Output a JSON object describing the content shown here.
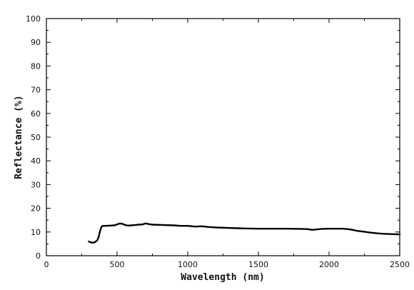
{
  "chart_data": {
    "type": "line",
    "title": "",
    "xlabel": "Wavelength (nm)",
    "ylabel": "Reflectance (%)",
    "xlim": [
      0,
      2500
    ],
    "ylim": [
      0,
      100
    ],
    "xticks": [
      0,
      500,
      1000,
      1500,
      2000,
      2500
    ],
    "yticks": [
      0,
      10,
      20,
      30,
      40,
      50,
      60,
      70,
      80,
      90,
      100
    ],
    "grid": false,
    "legend": "none",
    "series": [
      {
        "color": "#000000",
        "x": [
          300,
          320,
          340,
          360,
          370,
          380,
          390,
          400,
          420,
          450,
          480,
          500,
          520,
          540,
          560,
          580,
          600,
          620,
          650,
          680,
          700,
          720,
          750,
          800,
          850,
          900,
          950,
          1000,
          1050,
          1100,
          1150,
          1200,
          1250,
          1300,
          1350,
          1400,
          1500,
          1600,
          1700,
          1800,
          1850,
          1880,
          1900,
          1950,
          2000,
          2050,
          2100,
          2150,
          2200,
          2250,
          2300,
          2350,
          2400,
          2450,
          2500
        ],
        "y": [
          6.0,
          5.5,
          5.6,
          6.5,
          8.0,
          10.5,
          12.2,
          12.6,
          12.6,
          12.7,
          12.8,
          13.2,
          13.6,
          13.4,
          12.9,
          12.7,
          12.8,
          12.9,
          13.1,
          13.2,
          13.6,
          13.4,
          13.1,
          13.0,
          12.9,
          12.8,
          12.6,
          12.6,
          12.3,
          12.4,
          12.1,
          11.9,
          11.8,
          11.7,
          11.6,
          11.5,
          11.4,
          11.4,
          11.4,
          11.3,
          11.2,
          10.9,
          11.0,
          11.3,
          11.4,
          11.4,
          11.4,
          11.1,
          10.5,
          10.1,
          9.7,
          9.4,
          9.2,
          9.1,
          9.0
        ]
      }
    ]
  }
}
